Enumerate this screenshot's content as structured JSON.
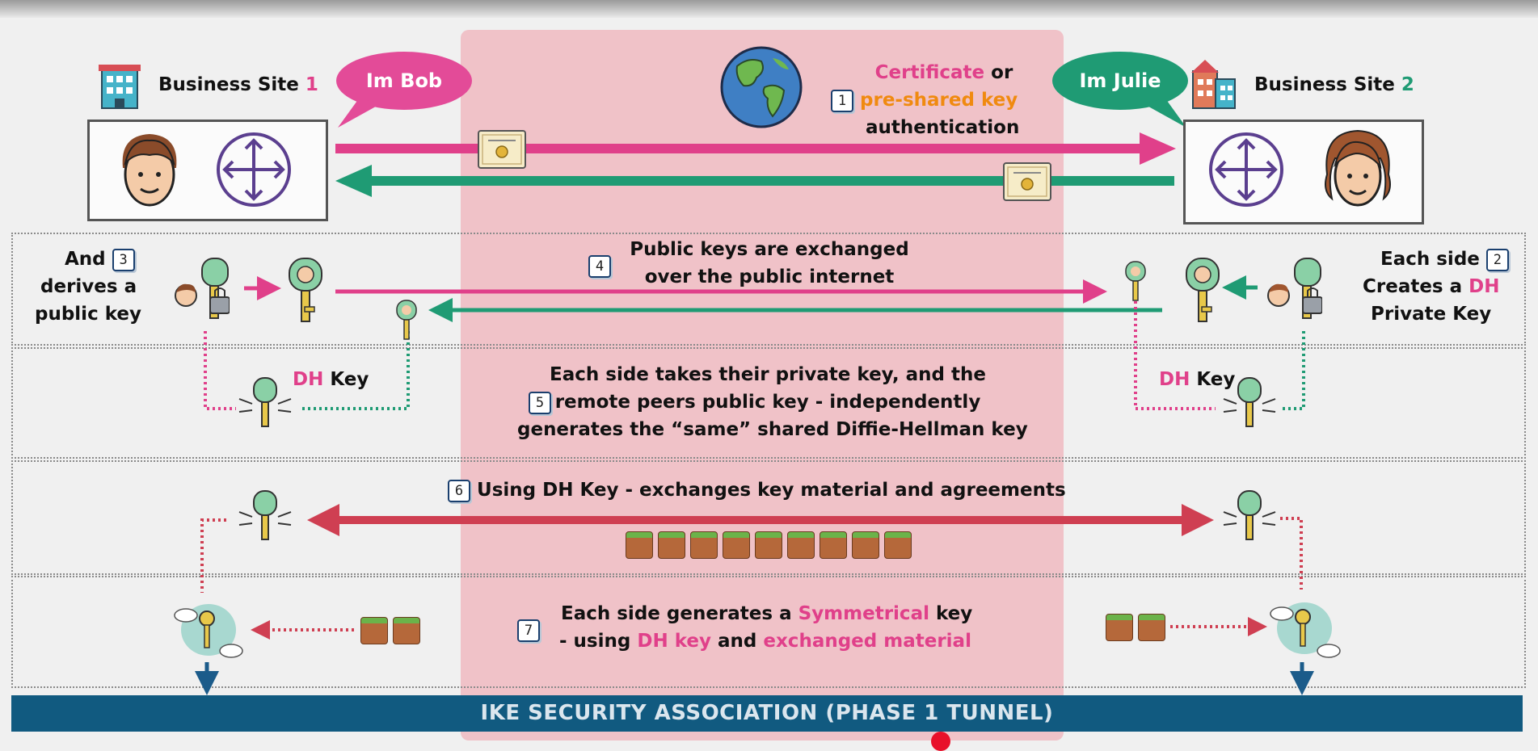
{
  "site1": {
    "label": "Business Site",
    "num": "1"
  },
  "site2": {
    "label": "Business Site",
    "num": "2"
  },
  "bob": "Im Bob",
  "julie": "Im Julie",
  "auth": {
    "num": "1",
    "cert": "Certificate",
    "or": "or",
    "psk": "pre-shared key",
    "auth": "authentication"
  },
  "step3": {
    "and": "And",
    "num": "3",
    "l2": "derives a",
    "l3": "public key"
  },
  "step2": {
    "l1": "Each side",
    "num": "2",
    "l2a": "Creates a",
    "dh": "DH",
    "l3": "Private Key"
  },
  "step4": {
    "num": "4",
    "l1": "Public keys are exchanged",
    "l2": "over the public internet"
  },
  "dhkey_left": {
    "dh": "DH",
    "key": "Key"
  },
  "dhkey_right": {
    "dh": "DH",
    "key": "Key"
  },
  "step5": {
    "num": "5",
    "l1": "Each side takes their private key, and the",
    "l2": "remote peers public key - independently",
    "l3": "generates the “same” shared Diffie-Hellman key"
  },
  "step6": {
    "num": "6",
    "text": "Using DH Key - exchanges key material and agreements"
  },
  "step7": {
    "num": "7",
    "l1a": "Each side generates a",
    "sym": "Symmetrical",
    "l1b": "key",
    "l2a": "- using",
    "dhk": "DH key",
    "l2b": "and",
    "exm": "exchanged material"
  },
  "footer": "IKE SECURITY ASSOCIATION (PHASE 1 TUNNEL)",
  "colors": {
    "pink": "#e0408a",
    "green": "#1f9b74",
    "red": "#d8435a",
    "band": "#f0c2c8",
    "footer": "#115a80"
  },
  "icons": [
    "building-icon",
    "face-icon",
    "router-icon",
    "globe-icon",
    "certificate-icon",
    "key-icon",
    "padlock-icon",
    "cube-icon",
    "cloud-key-icon"
  ]
}
